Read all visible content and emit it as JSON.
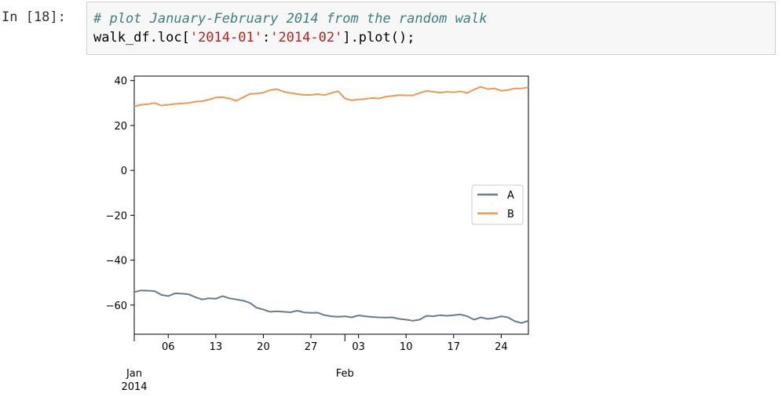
{
  "cell": {
    "prompt": "In [18]:",
    "comment": "# plot January-February 2014 from the random walk",
    "code_prefix": "walk_df.loc[",
    "code_str1": "'2014-01'",
    "code_colon": ":",
    "code_str2": "'2014-02'",
    "code_suffix": "].plot();"
  },
  "colors": {
    "series_A": "#6b7b8c",
    "series_B": "#eb9a54"
  },
  "chart_data": {
    "type": "line",
    "ylim": [
      -73,
      42
    ],
    "xlim": [
      "2014-01-01",
      "2014-02-28"
    ],
    "yticks": [
      40,
      20,
      0,
      -20,
      -40,
      -60
    ],
    "ytick_labels": [
      "40",
      "20",
      "0",
      "−20",
      "−40",
      "−60"
    ],
    "xticks_minor": [
      {
        "date": "2014-01-06",
        "label": "06"
      },
      {
        "date": "2014-01-13",
        "label": "13"
      },
      {
        "date": "2014-01-20",
        "label": "20"
      },
      {
        "date": "2014-01-27",
        "label": "27"
      },
      {
        "date": "2014-02-03",
        "label": "03"
      },
      {
        "date": "2014-02-10",
        "label": "10"
      },
      {
        "date": "2014-02-17",
        "label": "17"
      },
      {
        "date": "2014-02-24",
        "label": "24"
      }
    ],
    "xticks_major": [
      {
        "date": "2014-01-01",
        "label": "Jan",
        "sublabel": "2014"
      },
      {
        "date": "2014-02-01",
        "label": "Feb",
        "sublabel": ""
      }
    ],
    "legend": {
      "location": "center-right",
      "entries": [
        "A",
        "B"
      ]
    },
    "grid": false,
    "x": [
      "2014-01-01",
      "2014-01-02",
      "2014-01-03",
      "2014-01-04",
      "2014-01-05",
      "2014-01-06",
      "2014-01-07",
      "2014-01-08",
      "2014-01-09",
      "2014-01-10",
      "2014-01-11",
      "2014-01-12",
      "2014-01-13",
      "2014-01-14",
      "2014-01-15",
      "2014-01-16",
      "2014-01-17",
      "2014-01-18",
      "2014-01-19",
      "2014-01-20",
      "2014-01-21",
      "2014-01-22",
      "2014-01-23",
      "2014-01-24",
      "2014-01-25",
      "2014-01-26",
      "2014-01-27",
      "2014-01-28",
      "2014-01-29",
      "2014-01-30",
      "2014-01-31",
      "2014-02-01",
      "2014-02-02",
      "2014-02-03",
      "2014-02-04",
      "2014-02-05",
      "2014-02-06",
      "2014-02-07",
      "2014-02-08",
      "2014-02-09",
      "2014-02-10",
      "2014-02-11",
      "2014-02-12",
      "2014-02-13",
      "2014-02-14",
      "2014-02-15",
      "2014-02-16",
      "2014-02-17",
      "2014-02-18",
      "2014-02-19",
      "2014-02-20",
      "2014-02-21",
      "2014-02-22",
      "2014-02-23",
      "2014-02-24",
      "2014-02-25",
      "2014-02-26",
      "2014-02-27",
      "2014-02-28"
    ],
    "series": [
      {
        "name": "A",
        "values": [
          -54.2,
          -53.5,
          -53.6,
          -53.8,
          -55.5,
          -56.0,
          -54.8,
          -54.9,
          -55.2,
          -56.5,
          -57.5,
          -57.0,
          -57.2,
          -56.0,
          -57.0,
          -57.5,
          -58.0,
          -59.0,
          -61.2,
          -62.0,
          -63.0,
          -62.8,
          -63.0,
          -63.2,
          -62.5,
          -63.3,
          -63.5,
          -63.4,
          -64.5,
          -65.0,
          -65.2,
          -65.0,
          -65.5,
          -64.6,
          -65.0,
          -65.3,
          -65.5,
          -65.6,
          -65.5,
          -66.2,
          -66.5,
          -67.0,
          -66.5,
          -64.8,
          -65.0,
          -64.5,
          -64.8,
          -64.5,
          -64.2,
          -65.0,
          -66.5,
          -65.5,
          -66.2,
          -65.8,
          -65.0,
          -65.5,
          -67.2,
          -68.0,
          -67.0
        ]
      },
      {
        "name": "B",
        "values": [
          28.5,
          29.2,
          29.5,
          30.0,
          28.9,
          29.2,
          29.6,
          29.8,
          30.0,
          30.6,
          30.8,
          31.5,
          32.5,
          32.6,
          32.0,
          31.0,
          32.5,
          34.0,
          34.2,
          34.6,
          35.8,
          36.2,
          35.0,
          34.5,
          34.0,
          33.6,
          33.6,
          34.0,
          33.5,
          34.5,
          35.3,
          32.0,
          31.2,
          31.6,
          31.8,
          32.3,
          32.0,
          32.8,
          33.2,
          33.5,
          33.4,
          33.4,
          34.5,
          35.4,
          35.0,
          34.6,
          35.0,
          34.8,
          35.2,
          34.5,
          36.0,
          37.2,
          36.2,
          36.5,
          35.5,
          35.8,
          36.5,
          36.5,
          37.0
        ]
      }
    ]
  }
}
